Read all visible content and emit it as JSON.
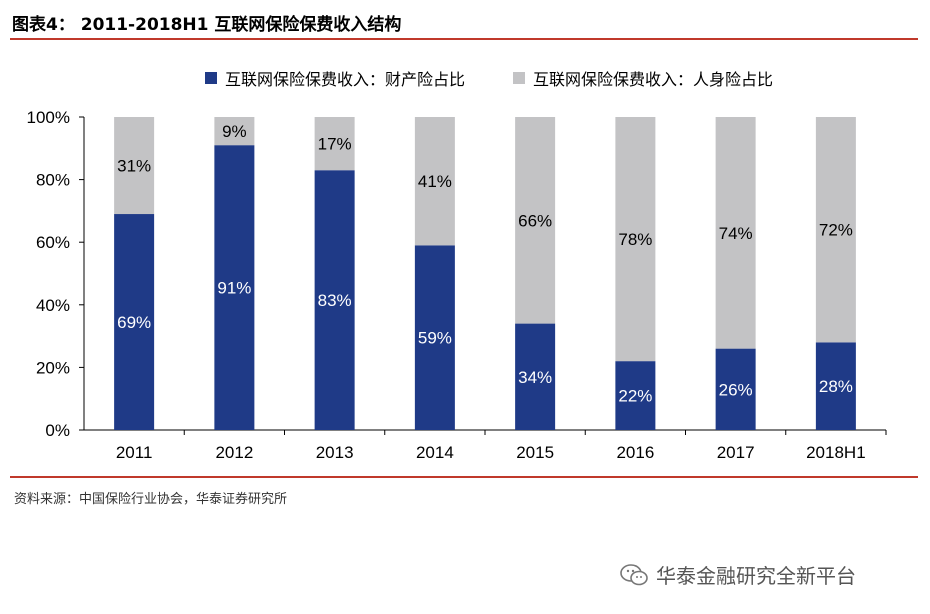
{
  "figure": {
    "title": "图表4： 2011-2018H1 互联网保险保费收入结构",
    "source": "资料来源：中国保险行业协会，华泰证券研究所"
  },
  "watermark": {
    "text": "华泰金融研究全新平台",
    "icon": "wechat-icon"
  },
  "colors": {
    "accent_rule": "#c0392b",
    "property": "#1f3a87",
    "life": "#c3c3c5"
  },
  "chart_data": {
    "type": "bar",
    "stacked": true,
    "percent": true,
    "categories": [
      "2011",
      "2012",
      "2013",
      "2014",
      "2015",
      "2016",
      "2017",
      "2018H1"
    ],
    "series": [
      {
        "name": "互联网保险保费收入：财产险占比",
        "values": [
          69,
          91,
          83,
          59,
          34,
          22,
          26,
          28
        ]
      },
      {
        "name": "互联网保险保费收入：人身险占比",
        "values": [
          31,
          9,
          17,
          41,
          66,
          78,
          74,
          72
        ]
      }
    ],
    "data_labels": {
      "property": [
        "69%",
        "91%",
        "83%",
        "59%",
        "34%",
        "22%",
        "26%",
        "28%"
      ],
      "life": [
        "31%",
        "9%",
        "17%",
        "41%",
        "66%",
        "78%",
        "74%",
        "72%"
      ]
    },
    "ylim": [
      0,
      100
    ],
    "y_ticks": [
      "0%",
      "20%",
      "40%",
      "60%",
      "80%",
      "100%"
    ],
    "legend_position": "top",
    "grid": false
  }
}
